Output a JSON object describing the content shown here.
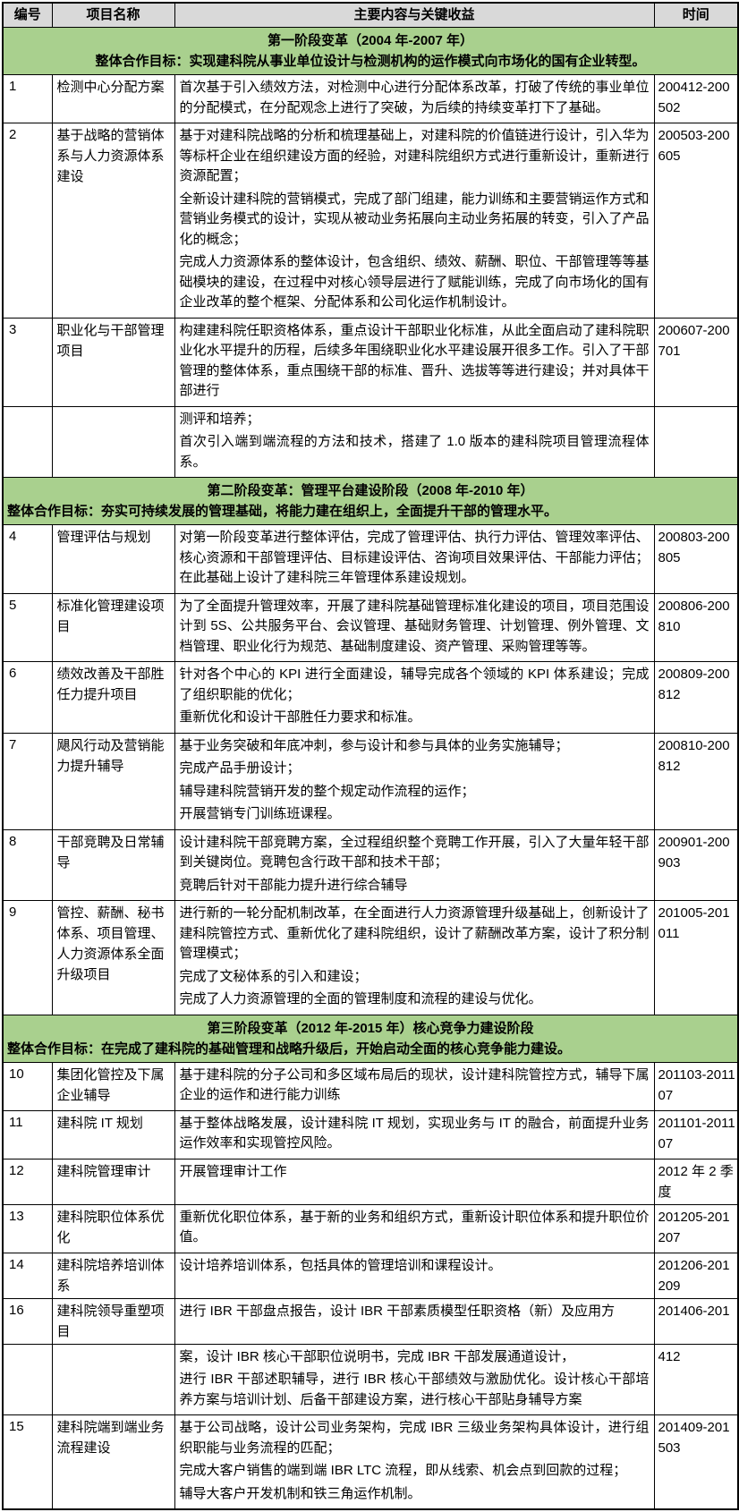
{
  "colors": {
    "header_bg": "#d9d9d9",
    "section_bg": "#a9d08e",
    "border": "#000000",
    "text": "#000000"
  },
  "table": {
    "columns": [
      {
        "label": "编号"
      },
      {
        "label": "项目名称"
      },
      {
        "label": "主要内容与关键收益"
      },
      {
        "label": "时间"
      }
    ],
    "rows": [
      {
        "type": "section",
        "title": "第一阶段变革（2004 年-2007 年）",
        "goal": "整体合作目标：实现建科院从事业单位设计与检测机构的运作模式向市场化的国有企业转型。",
        "goal_align": "center"
      },
      {
        "type": "item",
        "num": "1",
        "name": "检测中心分配方案",
        "time": "200412-200502",
        "paragraphs": [
          "首次基于引入绩效方法，对检测中心进行分配体系改革，打破了传统的事业单位的分配模式，在分配观念上进行了突破，为后续的持续变革打下了基础。"
        ]
      },
      {
        "type": "item",
        "num": "2",
        "name": "基于战略的营销体系与人力资源体系建设",
        "time": "200503-200605",
        "paragraphs": [
          "基于对建科院战略的分析和梳理基础上，对建科院的价值链进行设计，引入华为等标杆企业在组织建设方面的经验，对建科院组织方式进行重新设计，重新进行资源配置；",
          "全新设计建科院的营销模式，完成了部门组建，能力训练和主要营销运作方式和营销业务模式的设计，实现从被动业务拓展向主动业务拓展的转变，引入了产品化的概念；",
          "完成人力资源体系的整体设计，包含组织、绩效、薪酬、职位、干部管理等等基础模块的建设，在过程中对核心领导层进行了赋能训练，完成了向市场化的国有企业改革的整个框架、分配体系和公司化运作机制设计。"
        ]
      },
      {
        "type": "item",
        "num": "3",
        "name": "职业化与干部管理项目",
        "time": "200607-200701",
        "paragraphs": [
          "构建建科院任职资格体系，重点设计干部职业化标准，从此全面启动了建科院职业化水平提升的历程，后续多年围绕职业化水平建设展开很多工作。引入了干部管理的整体体系，重点围绕干部的标准、晋升、选拔等等进行建设；并对具体干部进行"
        ]
      },
      {
        "type": "item",
        "num": "",
        "name": "",
        "time": "",
        "paragraphs": [
          "测评和培养；",
          "首次引入端到端流程的方法和技术，搭建了 1.0 版本的建科院项目管理流程体系。"
        ]
      },
      {
        "type": "section",
        "title": "第二阶段变革：管理平台建设阶段（2008 年-2010 年）",
        "goal": "整体合作目标：夯实可持续发展的管理基础，将能力建在组织上，全面提升干部的管理水平。",
        "goal_align": "left"
      },
      {
        "type": "item",
        "num": "4",
        "name": "管理评估与规划",
        "time": "200803-200805",
        "paragraphs": [
          "对第一阶段变革进行整体评估，完成了管理评估、执行力评估、管理效率评估、核心资源和干部管理评估、目标建设评估、咨询项目效果评估、干部能力评估；在此基础上设计了建科院三年管理体系建设规划。"
        ]
      },
      {
        "type": "item",
        "num": "5",
        "name": "标准化管理建设项目",
        "time": "200806-200810",
        "paragraphs": [
          "为了全面提升管理效率，开展了建科院基础管理标准化建设的项目，项目范围设计到 5S、公共服务平台、会议管理、基础财务管理、计划管理、例外管理、文档管理、职业化行为规范、基础制度建设、资产管理、采购管理等等。"
        ]
      },
      {
        "type": "item",
        "num": "6",
        "name": "绩效改善及干部胜任力提升项目",
        "time": "200809-200812",
        "paragraphs": [
          "针对各个中心的 KPI 进行全面建设，辅导完成各个领域的 KPI 体系建设；完成了组织职能的优化；",
          "重新优化和设计干部胜任力要求和标准。"
        ]
      },
      {
        "type": "item",
        "num": "7",
        "name": "飓风行动及营销能力提升辅导",
        "time": "200810-200812",
        "paragraphs": [
          "基于业务突破和年底冲刺，参与设计和参与具体的业务实施辅导；",
          "完成产品手册设计；",
          "辅导建科院营销开发的整个规定动作流程的运作；",
          "开展营销专门训练班课程。"
        ]
      },
      {
        "type": "item",
        "num": "8",
        "name": "干部竞聘及日常辅导",
        "time": "200901-200903",
        "paragraphs": [
          "设计建科院干部竞聘方案，全过程组织整个竞聘工作开展，引入了大量年轻干部到关键岗位。竞聘包含行政干部和技术干部；",
          "竞聘后针对干部能力提升进行综合辅导"
        ]
      },
      {
        "type": "item",
        "num": "9",
        "name": "管控、薪酬、秘书体系、项目管理、人力资源体系全面升级项目",
        "time": "201005-201011",
        "paragraphs": [
          "进行新的一轮分配机制改革，在全面进行人力资源管理升级基础上，创新设计了建科院管控方式、重新优化了建科院组织，设计了薪酬改革方案，设计了积分制管理模式；",
          "完成了文秘体系的引入和建设；",
          "完成了人力资源管理的全面的管理制度和流程的建设与优化。"
        ]
      },
      {
        "type": "section",
        "title": "第三阶段变革（2012 年-2015 年）核心竞争力建设阶段",
        "goal": "整体合作目标：在完成了建科院的基础管理和战略升级后，开始启动全面的核心竞争能力建设。",
        "goal_align": "left"
      },
      {
        "type": "item",
        "num": "10",
        "name": "集团化管控及下属企业辅导",
        "time": "201103-201107",
        "paragraphs": [
          "基于建科院的分子公司和多区域布局后的现状，设计建科院管控方式，辅导下属企业的运作和进行能力训练"
        ]
      },
      {
        "type": "item",
        "num": "11",
        "name": "建科院 IT 规划",
        "time": "201101-201107",
        "paragraphs": [
          "基于整体战略发展，设计建科院 IT 规划，实现业务与 IT 的融合，前面提升业务运作效率和实现管控风险。"
        ]
      },
      {
        "type": "item",
        "num": "12",
        "name": "建科院管理审计",
        "time": "2012 年 2 季度",
        "paragraphs": [
          "开展管理审计工作"
        ]
      },
      {
        "type": "item",
        "num": "13",
        "name": "建科院职位体系优化",
        "time": "201205-201207",
        "paragraphs": [
          "重新优化职位体系，基于新的业务和组织方式，重新设计职位体系和提升职位价值。"
        ]
      },
      {
        "type": "item",
        "num": "14",
        "name": "建科院培养培训体系",
        "time": "201206-201209",
        "paragraphs": [
          "设计培养培训体系，包括具体的管理培训和课程设计。"
        ]
      },
      {
        "type": "item",
        "num": "16",
        "name": "建科院领导重塑项目",
        "time": "201406-201",
        "oneline": true,
        "paragraphs": [
          "进行 IBR 干部盘点报告，设计 IBR 干部素质模型任职资格（新）及应用方"
        ]
      },
      {
        "type": "item",
        "num": "",
        "name": "",
        "time": "412",
        "paragraphs": [
          "案，设计 IBR 核心干部职位说明书，完成 IBR 干部发展通道设计，",
          "进行 IBR 干部述职辅导，进行 IBR 核心干部绩效与激励优化。设计核心干部培养方案与培训计划、后备干部建设方案，进行核心干部贴身辅导方案"
        ]
      },
      {
        "type": "item",
        "num": "15",
        "name": "建科院端到端业务流程建设",
        "time": "201409-201503",
        "paragraphs": [
          "基于公司战略，设计公司业务架构，完成 IBR 三级业务架构具体设计，进行组织职能与业务流程的匹配；",
          "完成大客户销售的端到端 IBR LTC 流程，即从线索、机会点到回款的过程；",
          "辅导大客户开发机制和铁三角运作机制。"
        ]
      }
    ]
  }
}
